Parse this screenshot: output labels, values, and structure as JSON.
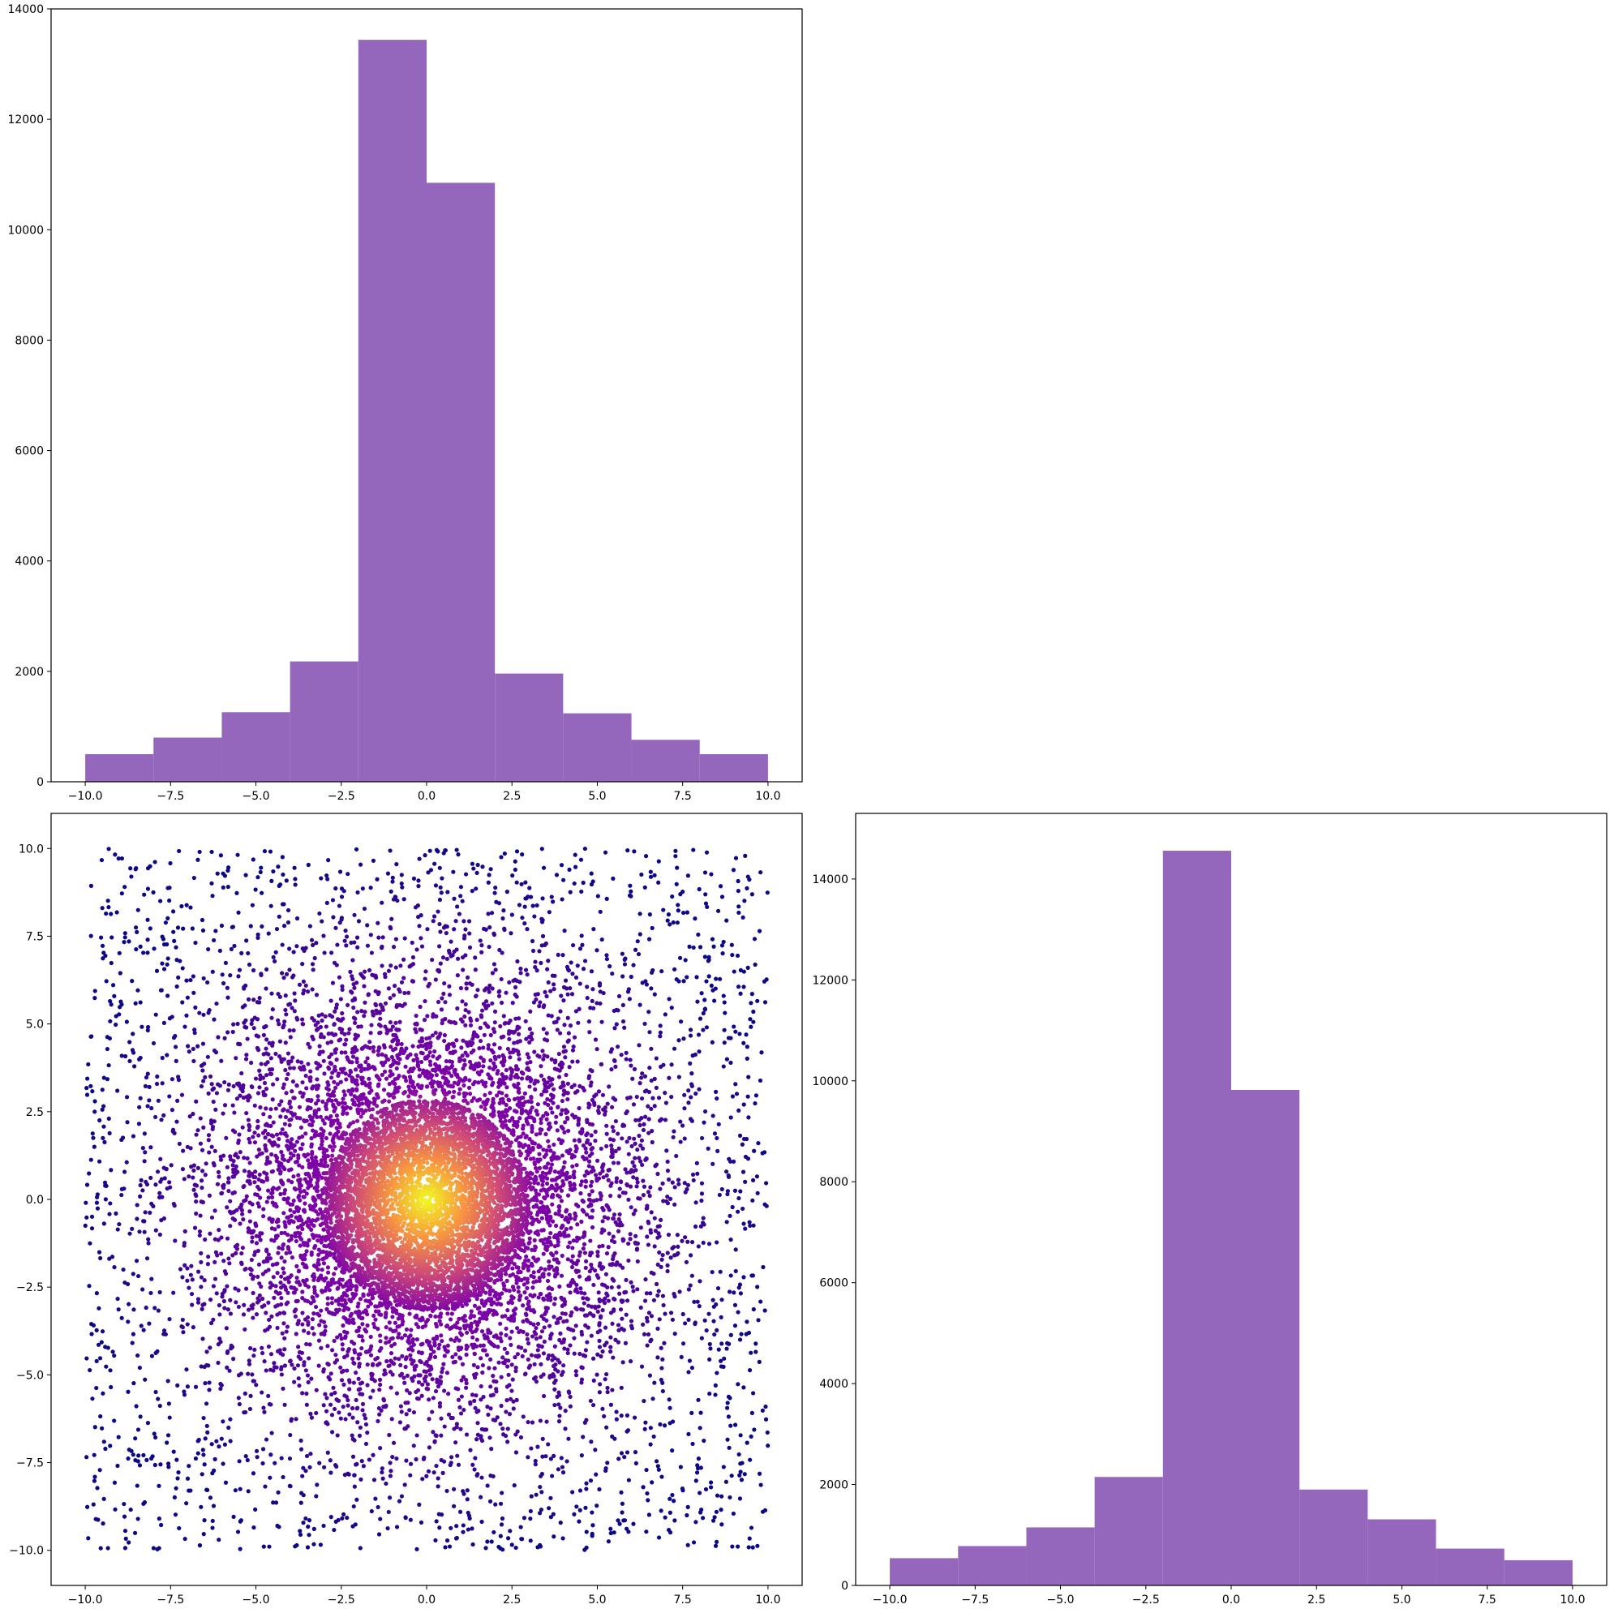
{
  "figure": {
    "colors": {
      "hist_fill": "#9467bd",
      "scatter_colormap": "plasma",
      "background": "#ffffff",
      "axes_edge": "#000000"
    }
  },
  "chart_data": [
    {
      "id": "hist-x",
      "type": "bar",
      "subtype": "histogram",
      "position_in_grid": "top-left",
      "bin_edges": [
        -10,
        -8,
        -6,
        -4,
        -2,
        0,
        2,
        4,
        6,
        8,
        10
      ],
      "values": [
        500,
        800,
        1260,
        2180,
        13440,
        10850,
        1960,
        1240,
        760,
        500
      ],
      "xlim": [
        -11,
        11
      ],
      "ylim": [
        0,
        14000
      ],
      "xticks": [
        -10,
        -7.5,
        -5,
        -2.5,
        0,
        2.5,
        5,
        7.5,
        10
      ],
      "xtick_labels": [
        "−10.0",
        "−7.5",
        "−5.0",
        "−2.5",
        "0.0",
        "2.5",
        "5.0",
        "7.5",
        "10.0"
      ],
      "yticks": [
        0,
        2000,
        4000,
        6000,
        8000,
        10000,
        12000,
        14000
      ],
      "ytick_labels": [
        "0",
        "2000",
        "4000",
        "6000",
        "8000",
        "10000",
        "12000",
        "14000"
      ],
      "grid": false
    },
    {
      "id": "scatter-xy",
      "type": "scatter",
      "position_in_grid": "bottom-left",
      "description_of_distribution": "points uniformly spread over [-10,10]x[-10,10] plus a dense radial cluster at the origin; colour by density (plasma)",
      "xlim": [
        -11,
        11
      ],
      "ylim": [
        -11,
        11
      ],
      "xticks": [
        -10,
        -7.5,
        -5,
        -2.5,
        0,
        2.5,
        5,
        7.5,
        10
      ],
      "xtick_labels": [
        "−10.0",
        "−7.5",
        "−5.0",
        "−2.5",
        "0.0",
        "2.5",
        "5.0",
        "7.5",
        "10.0"
      ],
      "yticks": [
        -10,
        -7.5,
        -5,
        -2.5,
        0,
        2.5,
        5,
        7.5,
        10
      ],
      "ytick_labels": [
        "−10.0",
        "−7.5",
        "−5.0",
        "−2.5",
        "0.0",
        "2.5",
        "5.0",
        "7.5",
        "10.0"
      ],
      "grid": false
    },
    {
      "id": "hist-y",
      "type": "bar",
      "subtype": "histogram",
      "position_in_grid": "bottom-right",
      "bin_edges": [
        -10,
        -8,
        -6,
        -4,
        -2,
        0,
        2,
        4,
        6,
        8,
        10
      ],
      "values": [
        540,
        780,
        1150,
        2150,
        14560,
        9820,
        1900,
        1310,
        730,
        500
      ],
      "xlim": [
        -11,
        11
      ],
      "ylim": [
        0,
        15300
      ],
      "xticks": [
        -10,
        -7.5,
        -5,
        -2.5,
        0,
        2.5,
        5,
        7.5,
        10
      ],
      "xtick_labels": [
        "−10.0",
        "−7.5",
        "−5.0",
        "−2.5",
        "0.0",
        "2.5",
        "5.0",
        "7.5",
        "10.0"
      ],
      "yticks": [
        0,
        2000,
        4000,
        6000,
        8000,
        10000,
        12000,
        14000
      ],
      "ytick_labels": [
        "0",
        "2000",
        "4000",
        "6000",
        "8000",
        "10000",
        "12000",
        "14000"
      ],
      "grid": false
    }
  ]
}
